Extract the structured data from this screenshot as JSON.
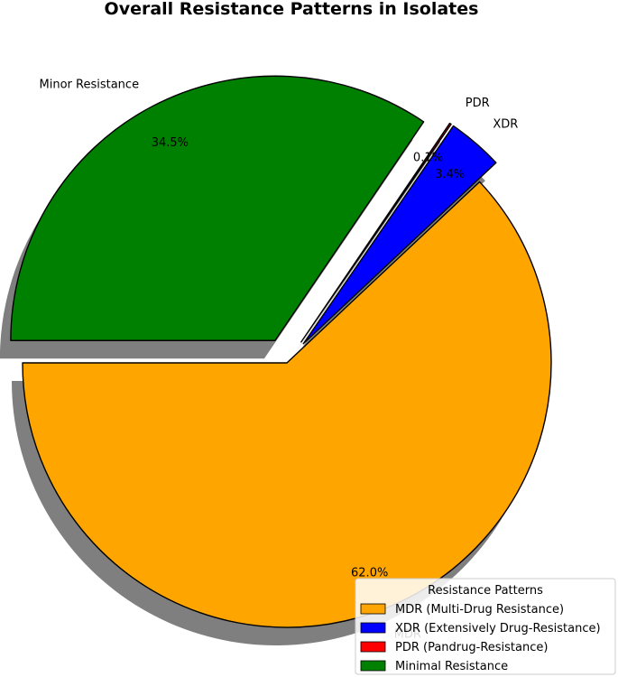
{
  "chart_data": {
    "type": "pie",
    "title": "Overall Resistance Patterns in Isolates",
    "slices": [
      {
        "label": "MDR",
        "legend": "MDR (Multi-Drug Resistance)",
        "value": 62.0,
        "pct_label": "62.0%",
        "color": "#FFA500"
      },
      {
        "label": "XDR",
        "legend": "XDR (Extensively Drug-Resistance)",
        "value": 3.4,
        "pct_label": "3.4%",
        "color": "#0000FF"
      },
      {
        "label": "PDR",
        "legend": "PDR (Pandrug-Resistance)",
        "value": 0.1,
        "pct_label": "0.1%",
        "color": "#FF0000"
      },
      {
        "label": "Minor Resistance",
        "legend": "Minimal Resistance",
        "value": 34.5,
        "pct_label": "34.5%",
        "color": "#008000"
      }
    ],
    "legend_title": "Resistance Patterns",
    "legend_position": "lower-right",
    "shadow": true,
    "explode": [
      0,
      0.1,
      0.1,
      0.1
    ],
    "start_angle_deg": 180,
    "direction": "counterclockwise"
  }
}
